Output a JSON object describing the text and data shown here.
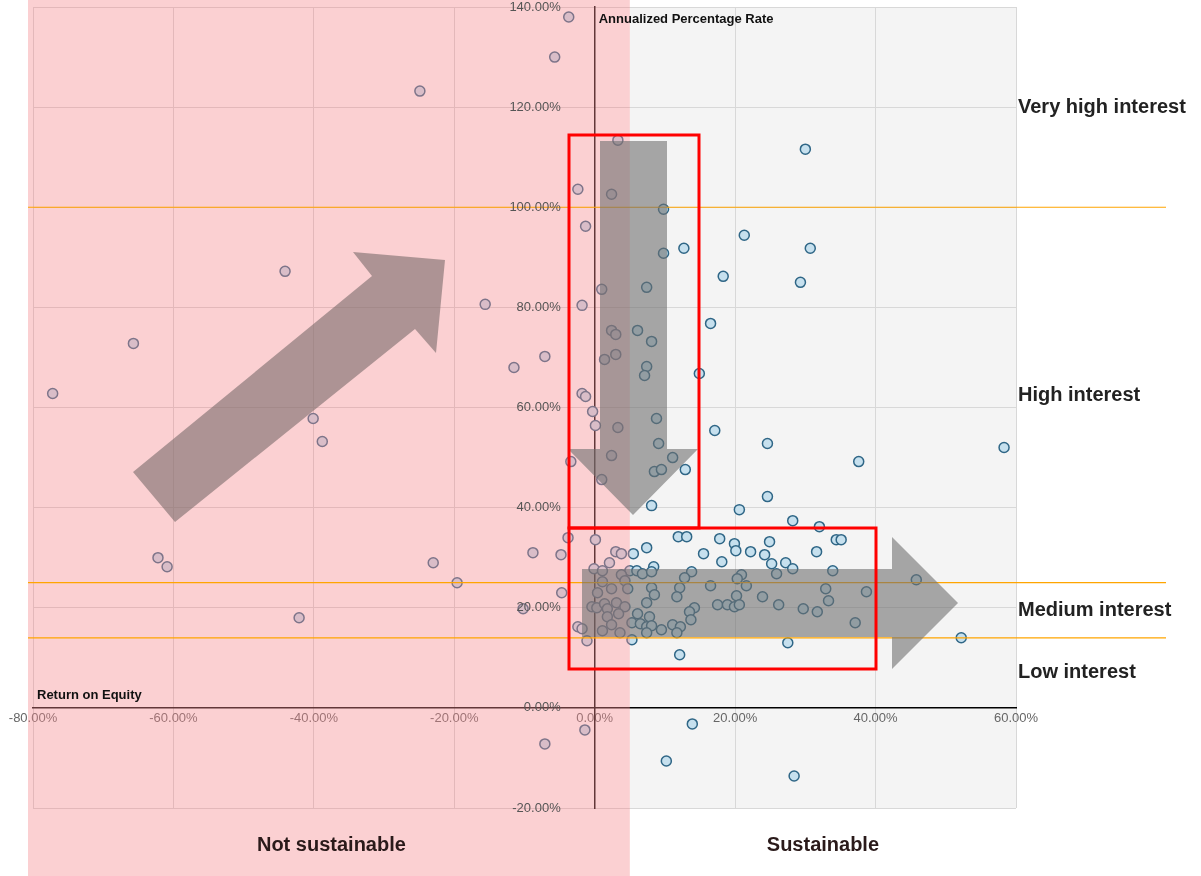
{
  "chart_data": {
    "type": "scatter",
    "xlabel": "Return on Equity",
    "ylabel": "Annualized Percentage Rate",
    "xlim": [
      -80,
      60
    ],
    "ylim": [
      -20,
      140
    ],
    "xticks": [
      {
        "value": -80,
        "label": "-80.00%"
      },
      {
        "value": -60,
        "label": "-60.00%"
      },
      {
        "value": -40,
        "label": "-40.00%"
      },
      {
        "value": -20,
        "label": "-20.00%"
      },
      {
        "value": 0,
        "label": "0.00%"
      },
      {
        "value": 20,
        "label": "20.00%"
      },
      {
        "value": 40,
        "label": "40.00%"
      },
      {
        "value": 60,
        "label": "60.00%"
      }
    ],
    "yticks": [
      {
        "value": -20,
        "label": "-20.00%"
      },
      {
        "value": 0,
        "label": "0.00%"
      },
      {
        "value": 20,
        "label": "20.00%"
      },
      {
        "value": 40,
        "label": "40.00%"
      },
      {
        "value": 60,
        "label": "60.00%"
      },
      {
        "value": 80,
        "label": "80.00%"
      },
      {
        "value": 100,
        "label": "100.00%"
      },
      {
        "value": 120,
        "label": "120.00%"
      },
      {
        "value": 140,
        "label": "140.00%"
      }
    ],
    "grid": true,
    "marker": "circle",
    "series": [
      {
        "color": "#c6e0ee",
        "x": [
          -77.2,
          -65.7,
          -44.1,
          -24.9,
          -40.1,
          -38.8,
          -15.6,
          -11.5,
          -7.1,
          -5.7,
          -3.7,
          -2.4,
          -1.3,
          3.3,
          2.4,
          9.8,
          21.3,
          30,
          12.7,
          30.7,
          9.8,
          18.3,
          29.3,
          1,
          7.4,
          -1.8,
          16.5,
          2.4,
          3,
          6.1,
          8.1,
          3,
          1.4,
          7.4,
          7.1,
          14.9,
          -1.8,
          -1.3,
          -0.3,
          0.1,
          3.3,
          8.8,
          17.1,
          24.6,
          58.3,
          9.1,
          -3.4,
          2.4,
          11.1,
          37.6,
          1,
          8.5,
          9.5,
          12.9,
          8.1,
          20.6,
          24.6,
          28.2,
          32,
          -3.8,
          0.1,
          -8.8,
          -4.8,
          -62.2,
          -60.9,
          -23,
          -19.6,
          -4.7,
          -10.2,
          -42.1,
          -2.4,
          -1.8,
          -1.1,
          -0.1,
          -1.4,
          -7.1,
          13.9,
          10.2,
          28.4,
          11.9,
          13.1,
          17.8,
          19.9,
          20.1,
          24.9,
          34.4,
          35.1,
          3,
          3.8,
          5.5,
          7.4,
          15.5,
          22.2,
          24.2,
          31.6,
          18.1,
          25.2,
          27.2,
          28.2,
          25.9,
          33.9,
          2.1,
          5,
          6,
          6.8,
          8.4,
          8.1,
          13.8,
          12.8,
          1.1,
          3.8,
          1.1,
          4.3,
          20.9,
          20.3,
          21.6,
          16.5,
          12.1,
          0.4,
          2.4,
          4.7,
          8.1,
          8.5,
          7.4,
          11.7,
          20.2,
          23.9,
          32.9,
          38.7,
          33.3,
          -0.4,
          0.3,
          1.4,
          1.8,
          3.1,
          4.3,
          3.4,
          1.8,
          17.5,
          18.9,
          19.9,
          20.6,
          26.2,
          29.7,
          31.7,
          14.2,
          13.5,
          6.1,
          7.8,
          13.7,
          5.3,
          6.5,
          7.4,
          8.1,
          9.5,
          11.1,
          12.2,
          11.7,
          7.4,
          3.6,
          1.1,
          2.4,
          5.3,
          37.1,
          27.5,
          12.1,
          45.8,
          52.2
        ],
        "values": [
          62.8,
          72.8,
          87.2,
          123.2,
          57.8,
          53.2,
          80.6,
          68,
          70.2,
          130,
          138,
          103.6,
          96.2,
          113.4,
          102.6,
          99.6,
          94.4,
          111.6,
          91.8,
          91.8,
          90.8,
          86.2,
          85,
          83.6,
          84,
          80.4,
          76.8,
          75.4,
          74.6,
          75.4,
          73.2,
          70.6,
          69.6,
          68.2,
          66.4,
          66.8,
          62.8,
          62.2,
          59.2,
          56.4,
          56,
          57.8,
          55.4,
          52.8,
          52,
          52.8,
          49.2,
          50.4,
          50,
          49.2,
          45.6,
          47.2,
          47.6,
          47.6,
          40.4,
          39.6,
          42.2,
          37.4,
          36.2,
          34,
          33.6,
          31,
          30.6,
          30,
          28.2,
          29,
          25,
          23,
          19.8,
          18,
          16.2,
          15.8,
          13.4,
          27.8,
          -4.4,
          -7.2,
          -3.2,
          -10.6,
          -13.6,
          34.2,
          34.2,
          33.8,
          32.8,
          31.4,
          33.2,
          33.6,
          33.6,
          31.2,
          30.8,
          30.8,
          32,
          30.8,
          31.2,
          30.6,
          31.2,
          29.2,
          28.8,
          29,
          27.8,
          26.8,
          27.4,
          29,
          27.4,
          27.4,
          26.8,
          28.2,
          27.2,
          27.2,
          26,
          27.4,
          26.6,
          25.2,
          25.4,
          26.6,
          25.8,
          24.4,
          24.4,
          24,
          23,
          23.8,
          23.8,
          24,
          22.6,
          21,
          22.2,
          22.4,
          22.2,
          23.8,
          23.2,
          21.4,
          20.2,
          20,
          20.8,
          19.8,
          21,
          20.2,
          18.8,
          18.2,
          20.6,
          20.6,
          20.2,
          20.6,
          20.6,
          19.8,
          19.2,
          20,
          19.2,
          18.8,
          18.2,
          17.6,
          17,
          16.8,
          16.2,
          16.4,
          15.6,
          16.6,
          16.2,
          15,
          15,
          15,
          15.4,
          16.6,
          13.6,
          17,
          13,
          10.6,
          25.6,
          14
        ]
      }
    ],
    "ref_lines": [
      {
        "axis": "y",
        "value": 100,
        "color": "#ffa500"
      },
      {
        "axis": "y",
        "value": 25,
        "color": "#ffa500"
      },
      {
        "axis": "y",
        "value": 14,
        "color": "#ffa500"
      }
    ],
    "bands": [
      {
        "axis": "x",
        "from": -80,
        "to": 5,
        "label": "Not sustainable",
        "color": "#f5898e"
      },
      {
        "axis": "x",
        "from": 5,
        "to": 60,
        "label": "Sustainable",
        "color": "#f4f4f4"
      }
    ],
    "annotations": [
      "Very high interest",
      "High interest",
      "Medium interest",
      "Low interest"
    ]
  }
}
